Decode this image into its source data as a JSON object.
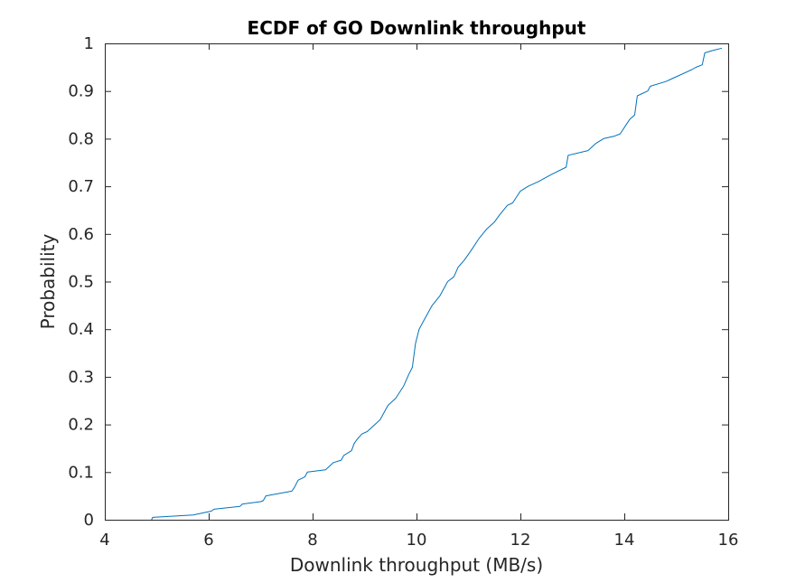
{
  "chart_data": {
    "type": "line",
    "title": "ECDF of GO Downlink throughput",
    "xlabel": "Downlink throughput (MB/s)",
    "ylabel": "Probability",
    "xlim": [
      4,
      16
    ],
    "ylim": [
      0,
      1
    ],
    "xticks": [
      4,
      6,
      8,
      10,
      12,
      14,
      16
    ],
    "xtick_labels": [
      "4",
      "6",
      "8",
      "10",
      "12",
      "14",
      "16"
    ],
    "yticks": [
      0,
      0.1,
      0.2,
      0.3,
      0.4,
      0.5,
      0.6,
      0.7,
      0.8,
      0.9,
      1
    ],
    "ytick_labels": [
      "0",
      "0.1",
      "0.2",
      "0.3",
      "0.4",
      "0.5",
      "0.6",
      "0.7",
      "0.8",
      "0.9",
      "1"
    ],
    "grid": false,
    "line_color": "#0072BD",
    "series": [
      {
        "x": [
          4.9,
          4.92,
          5.7,
          6.05,
          6.1,
          6.6,
          6.65,
          7.0,
          7.05,
          7.1,
          7.6,
          7.65,
          7.72,
          7.85,
          7.9,
          8.25,
          8.4,
          8.55,
          8.6,
          8.75,
          8.8,
          8.85,
          8.95,
          9.05,
          9.2,
          9.3,
          9.45,
          9.6,
          9.75,
          9.85,
          9.92,
          9.98,
          10.05,
          10.1,
          10.2,
          10.3,
          10.45,
          10.6,
          10.72,
          10.8,
          10.92,
          11.05,
          11.2,
          11.35,
          11.5,
          11.6,
          11.75,
          11.85,
          12.0,
          12.15,
          12.35,
          12.6,
          12.88,
          12.92,
          13.3,
          13.45,
          13.6,
          13.8,
          13.92,
          14.1,
          14.2,
          14.25,
          14.45,
          14.5,
          14.8,
          14.9,
          15.3,
          15.38,
          15.5,
          15.55,
          15.7,
          15.88
        ],
        "y": [
          0.0,
          0.005,
          0.01,
          0.018,
          0.022,
          0.028,
          0.033,
          0.038,
          0.04,
          0.05,
          0.06,
          0.068,
          0.083,
          0.09,
          0.1,
          0.105,
          0.12,
          0.125,
          0.135,
          0.145,
          0.16,
          0.168,
          0.18,
          0.185,
          0.2,
          0.21,
          0.24,
          0.255,
          0.28,
          0.305,
          0.32,
          0.37,
          0.4,
          0.41,
          0.43,
          0.45,
          0.47,
          0.5,
          0.51,
          0.53,
          0.545,
          0.565,
          0.59,
          0.61,
          0.625,
          0.64,
          0.66,
          0.665,
          0.69,
          0.7,
          0.71,
          0.725,
          0.74,
          0.765,
          0.775,
          0.79,
          0.8,
          0.805,
          0.81,
          0.84,
          0.85,
          0.89,
          0.9,
          0.91,
          0.92,
          0.925,
          0.945,
          0.95,
          0.955,
          0.98,
          0.985,
          0.99
        ]
      }
    ]
  }
}
